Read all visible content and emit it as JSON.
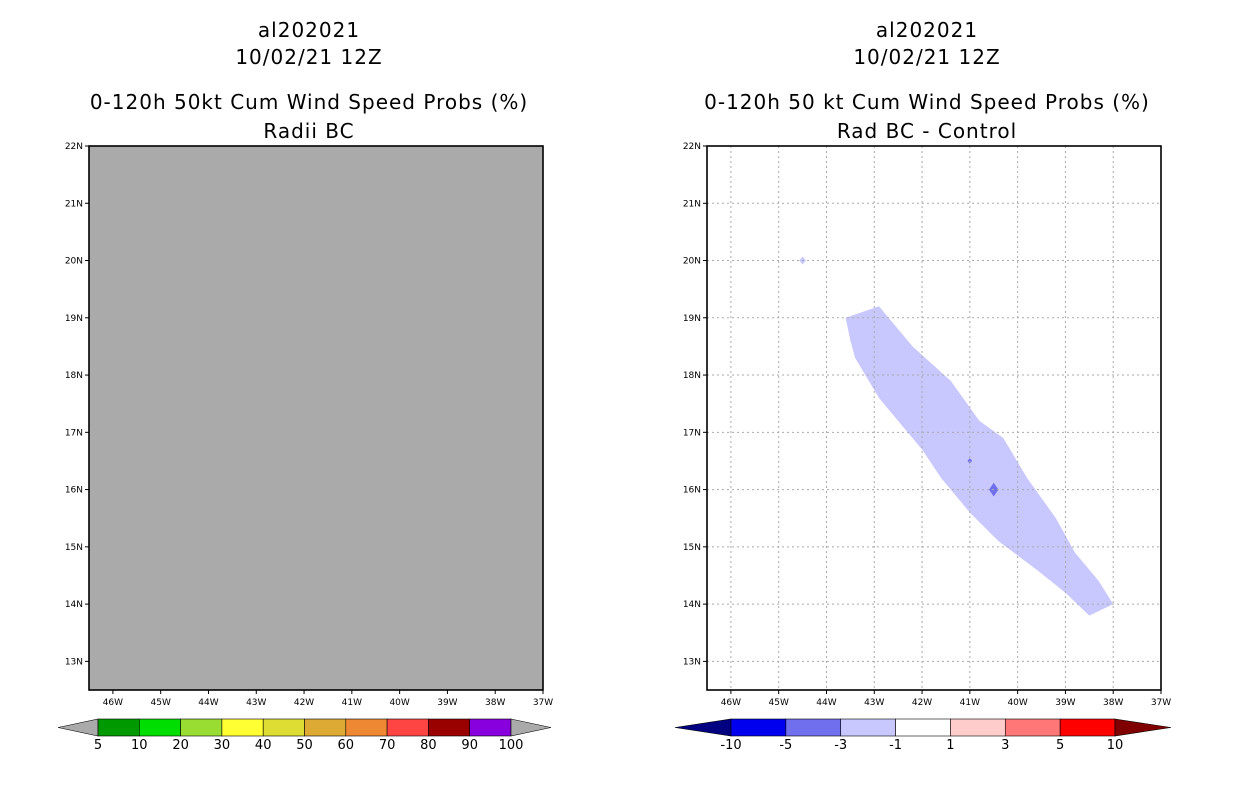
{
  "chart_data": [
    {
      "type": "heatmap",
      "title_lines": [
        "al202021",
        "10/02/21 12Z",
        "0-120h 50kt Cum Wind Speed Probs (%)",
        "Radii BC"
      ],
      "x_ticks": [
        "46W",
        "45W",
        "44W",
        "43W",
        "42W",
        "41W",
        "40W",
        "39W",
        "38W",
        "37W"
      ],
      "y_ticks": [
        "13N",
        "14N",
        "15N",
        "16N",
        "17N",
        "18N",
        "19N",
        "20N",
        "21N",
        "22N"
      ],
      "xlim": [
        -46.5,
        -37.0
      ],
      "ylim": [
        12.5,
        22.0
      ],
      "grid": false,
      "field_note": "all values below 5% (uniform gray)",
      "colorbar": {
        "labels": [
          "5",
          "10",
          "20",
          "30",
          "40",
          "50",
          "60",
          "70",
          "80",
          "90",
          "100"
        ],
        "colors": [
          "#009900",
          "#00dd00",
          "#99dd33",
          "#ffff33",
          "#dddd33",
          "#ddaa33",
          "#ee8833",
          "#ff4444",
          "#990000",
          "#8800dd"
        ],
        "low_color": "#aaaaaa",
        "high_color": "#aaaaaa"
      }
    },
    {
      "type": "heatmap",
      "title_lines": [
        "al202021",
        "10/02/21 12Z",
        "0-120h 50 kt Cum Wind Speed Probs (%)",
        "Rad BC - Control"
      ],
      "x_ticks": [
        "46W",
        "45W",
        "44W",
        "43W",
        "42W",
        "41W",
        "40W",
        "39W",
        "38W",
        "37W"
      ],
      "y_ticks": [
        "13N",
        "14N",
        "15N",
        "16N",
        "17N",
        "18N",
        "19N",
        "20N",
        "21N",
        "22N"
      ],
      "xlim": [
        -46.5,
        -37.0
      ],
      "ylim": [
        12.5,
        22.0
      ],
      "grid": true,
      "regions": [
        {
          "level": "-3 to -1",
          "color": "#c8c8ff",
          "points": [
            [
              -43.6,
              19.0
            ],
            [
              -42.9,
              19.2
            ],
            [
              -42.2,
              18.5
            ],
            [
              -41.4,
              17.9
            ],
            [
              -40.8,
              17.2
            ],
            [
              -40.3,
              16.9
            ],
            [
              -39.8,
              16.2
            ],
            [
              -39.2,
              15.5
            ],
            [
              -38.8,
              14.9
            ],
            [
              -38.3,
              14.4
            ],
            [
              -38.0,
              14.0
            ],
            [
              -38.5,
              13.8
            ],
            [
              -39.0,
              14.2
            ],
            [
              -39.6,
              14.6
            ],
            [
              -40.4,
              15.1
            ],
            [
              -41.0,
              15.6
            ],
            [
              -41.6,
              16.2
            ],
            [
              -42.0,
              16.7
            ],
            [
              -42.4,
              17.1
            ],
            [
              -42.9,
              17.6
            ],
            [
              -43.4,
              18.3
            ],
            [
              -43.5,
              18.6
            ]
          ]
        },
        {
          "level": "-3 to -1",
          "color": "#c8c8ff",
          "points": [
            [
              -44.5,
              20.07
            ],
            [
              -44.43,
              20.0
            ],
            [
              -44.5,
              19.93
            ],
            [
              -44.57,
              20.0
            ]
          ]
        },
        {
          "level": "-5 to -3",
          "color": "#7070ee",
          "points": [
            [
              -41.0,
              16.55
            ],
            [
              -40.95,
              16.5
            ],
            [
              -41.0,
              16.45
            ],
            [
              -41.05,
              16.5
            ]
          ]
        },
        {
          "level": "-5 to -3",
          "color": "#7070ee",
          "points": [
            [
              -40.5,
              16.12
            ],
            [
              -40.4,
              16.0
            ],
            [
              -40.5,
              15.88
            ],
            [
              -40.6,
              16.0
            ]
          ]
        }
      ],
      "colorbar": {
        "labels": [
          "-10",
          "-5",
          "-3",
          "-1",
          "1",
          "3",
          "5",
          "10"
        ],
        "colors": [
          "#0000ee",
          "#7070ee",
          "#c8c8ff",
          "#ffffff",
          "#ffcccc",
          "#ff7777",
          "#ff0000"
        ],
        "low_color": "#000080",
        "high_color": "#800000"
      }
    }
  ]
}
